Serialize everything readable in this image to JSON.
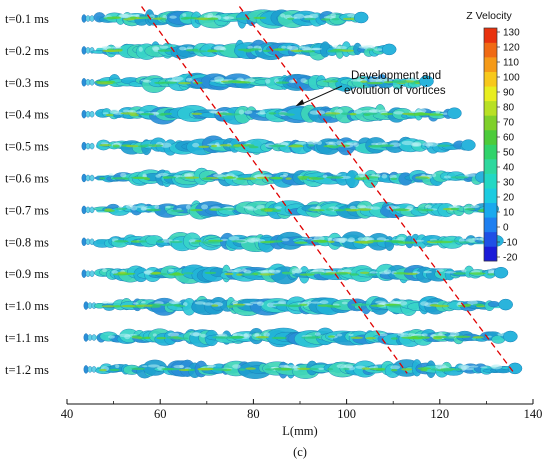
{
  "chart_data": {
    "type": "iso-surface time series",
    "xlabel": "L(mm)",
    "xlim": [
      40,
      140
    ],
    "x_ticks": [
      "40",
      "60",
      "80",
      "100",
      "120",
      "140"
    ],
    "panel_label": "(c)",
    "rows": [
      {
        "time": "t=0.1 ms",
        "jet_end_mm": 104
      },
      {
        "time": "t=0.2 ms",
        "jet_end_mm": 110
      },
      {
        "time": "t=0.3 ms",
        "jet_end_mm": 118
      },
      {
        "time": "t=0.4 ms",
        "jet_end_mm": 124
      },
      {
        "time": "t=0.5 ms",
        "jet_end_mm": 127
      },
      {
        "time": "t=0.6 ms",
        "jet_end_mm": 130
      },
      {
        "time": "t=0.7 ms",
        "jet_end_mm": 132
      },
      {
        "time": "t=0.8 ms",
        "jet_end_mm": 133
      },
      {
        "time": "t=0.9 ms",
        "jet_end_mm": 134
      },
      {
        "time": "t=1.0 ms",
        "jet_end_mm": 135
      },
      {
        "time": "t=1.1 ms",
        "jet_end_mm": 136
      },
      {
        "time": "t=1.2 ms",
        "jet_end_mm": 137
      }
    ],
    "trend_lines": [
      {
        "start": [
          56,
          "t=0.1 ms"
        ],
        "end": [
          113,
          "t=1.2 ms"
        ],
        "color": "#e00000",
        "style": "dashed"
      },
      {
        "start": [
          77,
          "t=0.1 ms"
        ],
        "end": [
          136,
          "t=1.2 ms"
        ],
        "color": "#e00000",
        "style": "dashed"
      }
    ],
    "annotation": {
      "lines": [
        "Development and",
        "evolution of vortices"
      ],
      "arrow_target_x_mm": 89,
      "arrow_target_row": "t=0.4 ms"
    },
    "colorbar": {
      "title": "Z Velocity",
      "min": -20,
      "max": 130,
      "ticks": [
        "130",
        "120",
        "110",
        "100",
        "90",
        "80",
        "70",
        "60",
        "50",
        "40",
        "30",
        "20",
        "10",
        "0",
        "-10",
        "-20"
      ],
      "colors": [
        "#1a1ad8",
        "#1f4fe6",
        "#1e7ff0",
        "#19a9ee",
        "#1ccbe0",
        "#22d8c4",
        "#2ed89e",
        "#30d36a",
        "#4ccb3a",
        "#7fd02a",
        "#b8e024",
        "#e8ee20",
        "#f7c81c",
        "#f59a18",
        "#f06a14",
        "#e8320e"
      ]
    }
  }
}
